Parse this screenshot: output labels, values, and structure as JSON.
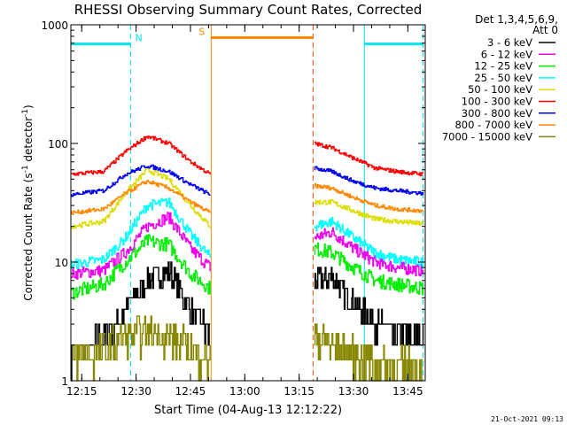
{
  "chart_data": {
    "type": "line",
    "title": "RHESSI Observing Summary Count Rates, Corrected",
    "xlabel": "Start Time (04-Aug-13 12:12:22)",
    "ylabel_main": "Corrected Count Rate (s",
    "ylabel_sup1": "-1",
    "ylabel_mid": " detector",
    "ylabel_sup2": "-1",
    "ylabel_end": ")",
    "y_scale": "log",
    "ylim": [
      1,
      1000
    ],
    "xlim": [
      12.2,
      13.83
    ],
    "y_tick_labels": [
      "1",
      "10",
      "100",
      "1000"
    ],
    "y_tick_values": [
      1,
      10,
      100,
      1000
    ],
    "x_tick_labels": [
      "12:15",
      "12:30",
      "12:45",
      "13:00",
      "13:15",
      "13:30",
      "13:45"
    ],
    "x_tick_values": [
      12.25,
      12.5,
      12.75,
      13.0,
      13.25,
      13.5,
      13.75
    ],
    "legend_header": [
      "Det 1,3,4,5,6,9,",
      "Att 0"
    ],
    "legend_placement": "right",
    "timestamp": "21-Oct-2021 09:13",
    "gap": [
      12.845,
      13.314
    ],
    "markers": [
      {
        "label": "N",
        "solid_x": [
          12.2,
          12.475
        ],
        "dashed_x": [
          12.475
        ],
        "color": "#00e5ee",
        "y": 690
      },
      {
        "label": "S",
        "solid_x": [
          12.845,
          13.314
        ],
        "dashed_x": [
          12.845
        ],
        "color": "#ff8800",
        "y": 780
      },
      {
        "label": "",
        "solid_x": [
          13.55,
          13.82
        ],
        "dashed_x": [
          13.82
        ],
        "color": "#00e5ee",
        "y": 690
      }
    ],
    "saa_solid_lines": [
      {
        "x": 12.2,
        "color": "#00e5ee"
      },
      {
        "x": 12.845,
        "color": "#ff8800"
      },
      {
        "x": 13.55,
        "color": "#00e5ee"
      }
    ],
    "saa_dashed_lines": [
      {
        "x": 12.475,
        "color": "#00e5ee"
      },
      {
        "x": 13.314,
        "color": "#ff4400"
      },
      {
        "x": 13.82,
        "color": "#00e5ee"
      }
    ],
    "series": [
      {
        "name": "3 - 6 keV",
        "color": "#000000",
        "seg1": {
          "t": [
            12.2,
            12.35,
            12.45,
            12.55,
            12.65,
            12.75,
            12.84
          ],
          "y": [
            1.7,
            2.2,
            4.0,
            7.0,
            8.5,
            4.0,
            2.5
          ]
        },
        "seg2": {
          "t": [
            13.32,
            13.4,
            13.5,
            13.6,
            13.7,
            13.82
          ],
          "y": [
            7.0,
            7.5,
            4.5,
            3.0,
            2.4,
            2.2
          ]
        },
        "noise": 0.25
      },
      {
        "name": "6 - 12 keV",
        "color": "#ee00ee",
        "seg1": {
          "t": [
            12.2,
            12.35,
            12.45,
            12.55,
            12.65,
            12.75,
            12.84
          ],
          "y": [
            8.0,
            8.5,
            12.0,
            20.0,
            24.0,
            13.0,
            9.0
          ]
        },
        "seg2": {
          "t": [
            13.32,
            13.4,
            13.5,
            13.6,
            13.7,
            13.82
          ],
          "y": [
            16.0,
            18.0,
            13.0,
            10.0,
            9.0,
            8.5
          ]
        },
        "noise": 0.12
      },
      {
        "name": "12 - 25 keV",
        "color": "#00ee00",
        "seg1": {
          "t": [
            12.2,
            12.35,
            12.45,
            12.55,
            12.65,
            12.75,
            12.84
          ],
          "y": [
            5.5,
            6.5,
            10.0,
            15.0,
            14.0,
            8.0,
            6.0
          ]
        },
        "seg2": {
          "t": [
            13.32,
            13.4,
            13.5,
            13.6,
            13.7,
            13.82
          ],
          "y": [
            13.0,
            12.0,
            9.0,
            7.0,
            6.5,
            6.0
          ]
        },
        "noise": 0.14
      },
      {
        "name": "25 - 50 keV",
        "color": "#00ffff",
        "seg1": {
          "t": [
            12.2,
            12.35,
            12.45,
            12.55,
            12.65,
            12.75,
            12.84
          ],
          "y": [
            9.5,
            10.5,
            16.0,
            30.0,
            32.0,
            17.0,
            11.0
          ]
        },
        "seg2": {
          "t": [
            13.32,
            13.4,
            13.5,
            13.6,
            13.7,
            13.82
          ],
          "y": [
            20.0,
            22.0,
            16.0,
            12.0,
            10.5,
            10.0
          ]
        },
        "noise": 0.1
      },
      {
        "name": "50 - 100 keV",
        "color": "#dddd00",
        "seg1": {
          "t": [
            12.2,
            12.35,
            12.45,
            12.55,
            12.65,
            12.75,
            12.84
          ],
          "y": [
            20.0,
            22.0,
            38.0,
            60.0,
            50.0,
            30.0,
            20.0
          ]
        },
        "seg2": {
          "t": [
            13.32,
            13.4,
            13.5,
            13.6,
            13.7,
            13.82
          ],
          "y": [
            32.0,
            32.0,
            27.0,
            23.0,
            22.0,
            21.0
          ]
        },
        "noise": 0.05
      },
      {
        "name": "100 - 300 keV",
        "color": "#ff0000",
        "seg1": {
          "t": [
            12.2,
            12.35,
            12.45,
            12.55,
            12.65,
            12.75,
            12.84
          ],
          "y": [
            55.0,
            58.0,
            85.0,
            115.0,
            100.0,
            70.0,
            55.0
          ]
        },
        "seg2": {
          "t": [
            13.32,
            13.4,
            13.5,
            13.6,
            13.7,
            13.82
          ],
          "y": [
            100.0,
            92.0,
            75.0,
            62.0,
            58.0,
            55.0
          ]
        },
        "noise": 0.04
      },
      {
        "name": "300 - 800 keV",
        "color": "#0000ee",
        "seg1": {
          "t": [
            12.2,
            12.35,
            12.45,
            12.55,
            12.65,
            12.75,
            12.84
          ],
          "y": [
            37.0,
            40.0,
            55.0,
            65.0,
            58.0,
            45.0,
            37.0
          ]
        },
        "seg2": {
          "t": [
            13.32,
            13.4,
            13.5,
            13.6,
            13.7,
            13.82
          ],
          "y": [
            62.0,
            58.0,
            48.0,
            42.0,
            40.0,
            38.0
          ]
        },
        "noise": 0.04
      },
      {
        "name": "800 - 7000 keV",
        "color": "#ff8800",
        "seg1": {
          "t": [
            12.2,
            12.35,
            12.45,
            12.55,
            12.65,
            12.75,
            12.84
          ],
          "y": [
            26.0,
            28.0,
            38.0,
            48.0,
            42.0,
            32.0,
            26.0
          ]
        },
        "seg2": {
          "t": [
            13.32,
            13.4,
            13.5,
            13.6,
            13.7,
            13.82
          ],
          "y": [
            44.0,
            42.0,
            35.0,
            30.0,
            28.0,
            27.0
          ]
        },
        "noise": 0.04
      },
      {
        "name": "7000 - 15000 keV",
        "color": "#888800",
        "seg1": {
          "t": [
            12.2,
            12.35,
            12.45,
            12.55,
            12.65,
            12.75,
            12.84
          ],
          "y": [
            1.5,
            1.8,
            2.3,
            2.5,
            2.4,
            1.8,
            1.5
          ]
        },
        "seg2": {
          "t": [
            13.32,
            13.4,
            13.5,
            13.6,
            13.7,
            13.82
          ],
          "y": [
            2.3,
            2.0,
            1.6,
            1.4,
            1.3,
            1.3
          ]
        },
        "noise": 0.35
      }
    ]
  }
}
